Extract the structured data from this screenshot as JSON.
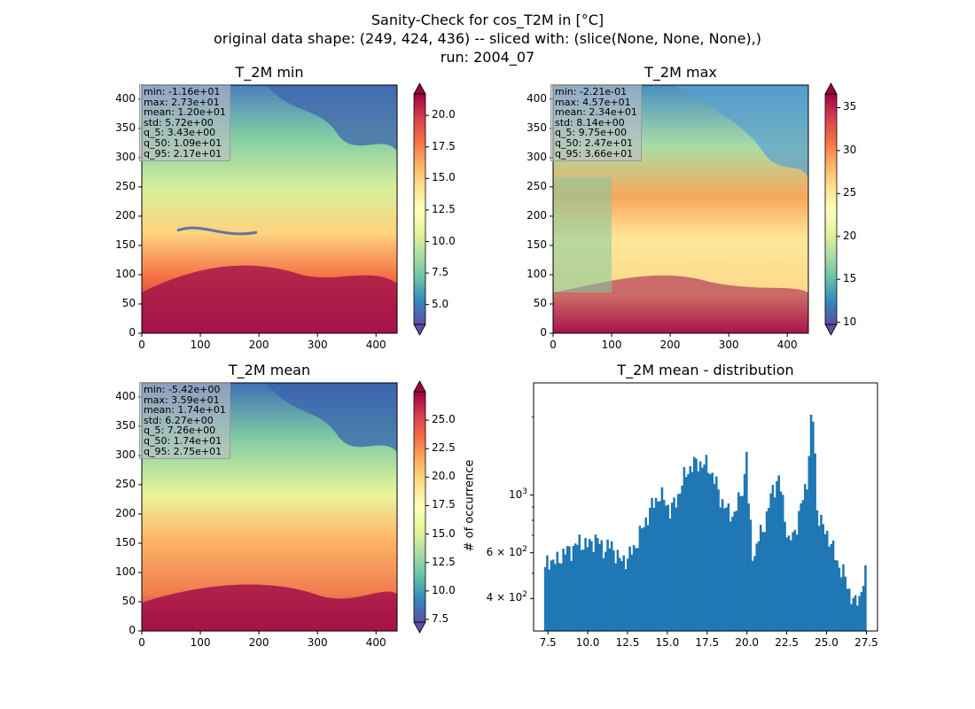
{
  "figure": {
    "title_line1": "Sanity-Check for cos_T2M in [°C]",
    "title_line2": "original data shape: (249, 424, 436) -- sliced with: (slice(None, None, None),)",
    "title_line3": "run: 2004_07"
  },
  "chart_data": [
    {
      "type": "heatmap",
      "title": "T_2M min",
      "xlim": [
        0,
        436
      ],
      "ylim": [
        0,
        424
      ],
      "xticks": [
        "0",
        "100",
        "200",
        "300",
        "400"
      ],
      "yticks": [
        "0",
        "50",
        "100",
        "150",
        "200",
        "250",
        "300",
        "350",
        "400"
      ],
      "colormap": "Spectral_r",
      "colorbar": {
        "ticks": [
          "5.0",
          "7.5",
          "10.0",
          "12.5",
          "15.0",
          "17.5",
          "20.0"
        ],
        "range": [
          3.43,
          21.7
        ],
        "extend": "both"
      },
      "stats": [
        "min: -1.16e+01",
        "max: 2.73e+01",
        "mean: 1.20e+01",
        "std: 5.72e+00",
        "q_5: 3.43e+00",
        "q_50: 1.09e+01",
        "q_95: 2.17e+01"
      ]
    },
    {
      "type": "heatmap",
      "title": "T_2M max",
      "xlim": [
        0,
        436
      ],
      "ylim": [
        0,
        424
      ],
      "xticks": [
        "0",
        "100",
        "200",
        "300",
        "400"
      ],
      "yticks": [
        "0",
        "50",
        "100",
        "150",
        "200",
        "250",
        "300",
        "350",
        "400"
      ],
      "colormap": "Spectral_r",
      "colorbar": {
        "ticks": [
          "10",
          "15",
          "20",
          "25",
          "30",
          "35"
        ],
        "range": [
          9.75,
          36.6
        ],
        "extend": "both"
      },
      "stats": [
        "min: -2.21e-01",
        "max: 4.57e+01",
        "mean: 2.34e+01",
        "std: 8.14e+00",
        "q_5: 9.75e+00",
        "q_50: 2.47e+01",
        "q_95: 3.66e+01"
      ]
    },
    {
      "type": "heatmap",
      "title": "T_2M mean",
      "xlim": [
        0,
        436
      ],
      "ylim": [
        0,
        424
      ],
      "xticks": [
        "0",
        "100",
        "200",
        "300",
        "400"
      ],
      "yticks": [
        "0",
        "50",
        "100",
        "150",
        "200",
        "250",
        "300",
        "350",
        "400"
      ],
      "colormap": "Spectral_r",
      "colorbar": {
        "ticks": [
          "7.5",
          "10.0",
          "12.5",
          "15.0",
          "17.5",
          "20.0",
          "22.5",
          "25.0"
        ],
        "range": [
          7.26,
          27.5
        ],
        "extend": "both"
      },
      "stats": [
        "min: -5.42e+00",
        "max: 3.59e+01",
        "mean: 1.74e+01",
        "std: 6.27e+00",
        "q_5: 7.26e+00",
        "q_50: 1.74e+01",
        "q_95: 2.75e+01"
      ]
    },
    {
      "type": "bar",
      "title": "T_2M mean - distribution",
      "xlabel": "",
      "ylabel": "# of occurrence",
      "yscale": "log",
      "xlim": [
        6.6,
        28.2
      ],
      "ylim": [
        300,
        2700
      ],
      "xticks": [
        "7.5",
        "10.0",
        "12.5",
        "15.0",
        "17.5",
        "20.0",
        "22.5",
        "25.0",
        "27.5"
      ],
      "yticks": [
        {
          "value": 400,
          "base": "4 × 10",
          "exp": "2"
        },
        {
          "value": 600,
          "base": "6 × 10",
          "exp": "2"
        },
        {
          "value": 1000,
          "base": "10",
          "exp": "3"
        }
      ],
      "color": "#1f77b4",
      "bin_start": 7.26,
      "bin_end": 27.5,
      "profile": [
        [
          7.3,
          500
        ],
        [
          7.5,
          570
        ],
        [
          8.0,
          550
        ],
        [
          8.5,
          600
        ],
        [
          9.0,
          620
        ],
        [
          9.5,
          660
        ],
        [
          10.0,
          640
        ],
        [
          10.5,
          680
        ],
        [
          11.0,
          620
        ],
        [
          11.5,
          640
        ],
        [
          12.0,
          560
        ],
        [
          12.5,
          570
        ],
        [
          13.0,
          640
        ],
        [
          13.5,
          760
        ],
        [
          14.0,
          900
        ],
        [
          14.5,
          1000
        ],
        [
          14.8,
          960
        ],
        [
          15.2,
          870
        ],
        [
          15.6,
          960
        ],
        [
          16.0,
          1150
        ],
        [
          16.5,
          1300
        ],
        [
          17.0,
          1330
        ],
        [
          17.5,
          1300
        ],
        [
          17.9,
          1180
        ],
        [
          18.3,
          980
        ],
        [
          18.8,
          860
        ],
        [
          19.2,
          840
        ],
        [
          19.6,
          1000
        ],
        [
          19.9,
          1200
        ],
        [
          20.0,
          1600
        ],
        [
          20.1,
          900
        ],
        [
          20.4,
          560
        ],
        [
          20.8,
          700
        ],
        [
          21.2,
          800
        ],
        [
          21.6,
          1050
        ],
        [
          22.0,
          1150
        ],
        [
          22.3,
          900
        ],
        [
          22.6,
          650
        ],
        [
          23.0,
          720
        ],
        [
          23.4,
          900
        ],
        [
          23.8,
          1150
        ],
        [
          24.1,
          2150
        ],
        [
          24.4,
          880
        ],
        [
          24.8,
          740
        ],
        [
          25.2,
          680
        ],
        [
          25.6,
          560
        ],
        [
          26.0,
          510
        ],
        [
          26.4,
          430
        ],
        [
          26.8,
          380
        ],
        [
          27.1,
          410
        ],
        [
          27.3,
          470
        ],
        [
          27.5,
          500
        ]
      ]
    }
  ]
}
